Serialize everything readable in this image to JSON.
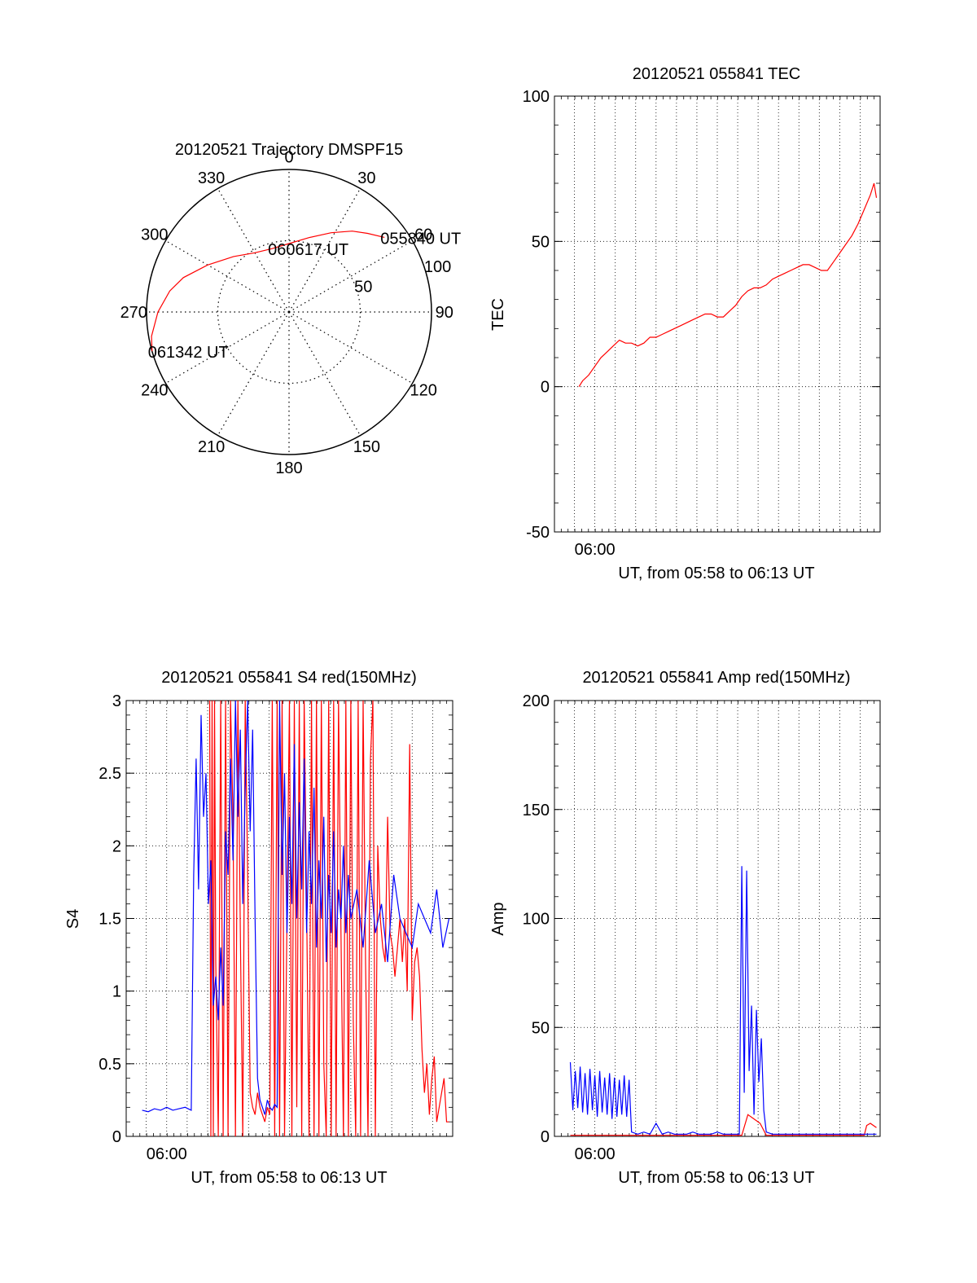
{
  "colors": {
    "red": "#ff0000",
    "blue": "#0000ff",
    "axis": "#000000",
    "grid": "#000000"
  },
  "chart_data": [
    {
      "type": "polar",
      "title": "20120521 Trajectory DMSPF15",
      "angle_labels": [
        "0",
        "30",
        "60",
        "90",
        "120",
        "150",
        "180",
        "210",
        "240",
        "270",
        "300",
        "330"
      ],
      "radial_labels": [
        "50",
        "100"
      ],
      "radial_values": [
        50,
        100
      ],
      "track": {
        "color": "red",
        "points": [
          {
            "az": 52,
            "r": 85
          },
          {
            "az": 45,
            "r": 78
          },
          {
            "az": 38,
            "r": 72
          },
          {
            "az": 28,
            "r": 63
          },
          {
            "az": 15,
            "r": 54
          },
          {
            "az": 0,
            "r": 48
          },
          {
            "az": -15,
            "r": 46
          },
          {
            "az": -30,
            "r": 48
          },
          {
            "az": -45,
            "r": 55
          },
          {
            "az": -60,
            "r": 66
          },
          {
            "az": -72,
            "r": 78
          },
          {
            "az": -80,
            "r": 85
          },
          {
            "az": -90,
            "r": 92
          },
          {
            "az": -100,
            "r": 98
          },
          {
            "az": -106,
            "r": 100
          }
        ]
      },
      "annotations": [
        {
          "text": "055840 UT",
          "az": 52,
          "r": 85
        },
        {
          "text": "060617 UT",
          "az": -15,
          "r": 46
        },
        {
          "text": "061342 UT",
          "az": -106,
          "r": 100
        }
      ]
    },
    {
      "type": "line",
      "title": "20120521 055841 TEC",
      "xlabel": "UT, from 05:58 to 06:13 UT",
      "ylabel": "TEC",
      "xlim": [
        5.967,
        6.233
      ],
      "ylim": [
        -50,
        100
      ],
      "yticks": [
        -50,
        0,
        50,
        100
      ],
      "xtick_label": "06:00",
      "xtick_value": 6.0,
      "grid": true,
      "series": [
        {
          "color": "red",
          "x": [
            5.987,
            5.99,
            5.995,
            6.0,
            6.005,
            6.01,
            6.015,
            6.02,
            6.025,
            6.03,
            6.035,
            6.04,
            6.045,
            6.05,
            6.055,
            6.06,
            6.065,
            6.07,
            6.075,
            6.08,
            6.085,
            6.09,
            6.095,
            6.1,
            6.105,
            6.11,
            6.115,
            6.12,
            6.125,
            6.13,
            6.135,
            6.14,
            6.145,
            6.15,
            6.155,
            6.16,
            6.165,
            6.17,
            6.175,
            6.18,
            6.185,
            6.19,
            6.195,
            6.2,
            6.205,
            6.21,
            6.215,
            6.22,
            6.225,
            6.228,
            6.23
          ],
          "values": [
            0,
            2,
            4,
            7,
            10,
            12,
            14,
            16,
            15,
            15,
            14,
            15,
            17,
            17,
            18,
            19,
            20,
            21,
            22,
            23,
            24,
            25,
            25,
            24,
            24,
            26,
            28,
            31,
            33,
            34,
            34,
            35,
            37,
            38,
            39,
            40,
            41,
            42,
            42,
            41,
            40,
            40,
            43,
            46,
            49,
            52,
            56,
            61,
            66,
            70,
            65
          ]
        }
      ]
    },
    {
      "type": "line",
      "title": "20120521 055841 S4 red(150MHz)",
      "xlabel": "UT, from 05:58 to 06:13 UT",
      "ylabel": "S4",
      "xlim": [
        5.967,
        6.233
      ],
      "ylim": [
        0,
        3
      ],
      "yticks": [
        0,
        0.5,
        1,
        1.5,
        2,
        2.5,
        3
      ],
      "ytick_labels": [
        "0",
        "0.5",
        "1",
        "1.5",
        "2",
        "2.5",
        "3"
      ],
      "xtick_label": "06:00",
      "xtick_value": 6.0,
      "grid": true,
      "series": [
        {
          "color": "red",
          "x": [
            6.035,
            6.036,
            6.037,
            6.038,
            6.039,
            6.04,
            6.042,
            6.044,
            6.046,
            6.048,
            6.05,
            6.052,
            6.054,
            6.056,
            6.058,
            6.06,
            6.062,
            6.064,
            6.066,
            6.068,
            6.07,
            6.072,
            6.074,
            6.076,
            6.078,
            6.08,
            6.082,
            6.084,
            6.086,
            6.088,
            6.09,
            6.092,
            6.094,
            6.096,
            6.098,
            6.1,
            6.102,
            6.104,
            6.106,
            6.108,
            6.11,
            6.112,
            6.114,
            6.116,
            6.118,
            6.12,
            6.122,
            6.124,
            6.126,
            6.128,
            6.13,
            6.132,
            6.134,
            6.136,
            6.138,
            6.14,
            6.142,
            6.144,
            6.146,
            6.148,
            6.15,
            6.152,
            6.154,
            6.156,
            6.158,
            6.16,
            6.162,
            6.164,
            6.166,
            6.168,
            6.17,
            6.172,
            6.174,
            6.176,
            6.178,
            6.18,
            6.182,
            6.184,
            6.186,
            6.188,
            6.19,
            6.192,
            6.194,
            6.196,
            6.198,
            6.2,
            6.202,
            6.204,
            6.206,
            6.208,
            6.21,
            6.212,
            6.214,
            6.216,
            6.218,
            6.22,
            6.222,
            6.224,
            6.226,
            6.228,
            6.23
          ],
          "values": [
            3,
            0,
            3,
            0,
            3,
            1.2,
            0,
            3,
            0,
            3,
            0,
            3,
            2.2,
            0,
            3,
            1.4,
            0,
            3,
            1.8,
            0.3,
            0.2,
            0.15,
            0.3,
            0.2,
            0.15,
            0.1,
            0.2,
            0.15,
            3,
            0,
            3,
            0,
            3,
            0,
            1.5,
            3,
            0,
            3,
            0.2,
            3,
            0,
            3,
            1.6,
            0,
            3,
            0,
            3,
            0,
            3,
            0.5,
            0,
            3,
            0,
            3,
            0,
            3,
            1.4,
            0,
            3,
            0,
            3,
            0.8,
            0,
            3,
            0,
            3,
            1.2,
            0,
            2.6,
            3,
            0,
            2.0,
            1.5,
            1.3,
            1.2,
            2.2,
            1.4,
            1.3,
            1.1,
            1.3,
            1.5,
            1.2,
            1.5,
            1.0,
            2.7,
            0.8,
            1.2,
            1.3,
            1.1,
            0.6,
            0.3,
            0.5,
            0.15,
            0.4,
            0.55,
            0.1,
            0.2,
            0.3,
            0.4,
            0.1,
            0.1
          ]
        },
        {
          "color": "blue",
          "x": [
            5.98,
            5.985,
            5.99,
            5.995,
            6.0,
            6.005,
            6.01,
            6.015,
            6.02,
            6.022,
            6.024,
            6.026,
            6.028,
            6.03,
            6.032,
            6.034,
            6.036,
            6.038,
            6.04,
            6.042,
            6.044,
            6.046,
            6.048,
            6.05,
            6.052,
            6.054,
            6.056,
            6.058,
            6.06,
            6.062,
            6.064,
            6.066,
            6.068,
            6.07,
            6.072,
            6.074,
            6.076,
            6.078,
            6.08,
            6.082,
            6.084,
            6.086,
            6.088,
            6.09,
            6.092,
            6.094,
            6.096,
            6.098,
            6.1,
            6.102,
            6.104,
            6.106,
            6.108,
            6.11,
            6.112,
            6.114,
            6.116,
            6.118,
            6.12,
            6.122,
            6.124,
            6.126,
            6.128,
            6.13,
            6.132,
            6.134,
            6.136,
            6.138,
            6.14,
            6.142,
            6.144,
            6.146,
            6.148,
            6.15,
            6.155,
            6.16,
            6.165,
            6.17,
            6.175,
            6.18,
            6.185,
            6.19,
            6.195,
            6.2,
            6.205,
            6.21,
            6.215,
            6.22,
            6.225,
            6.23
          ],
          "values": [
            0.18,
            0.17,
            0.19,
            0.18,
            0.2,
            0.18,
            0.19,
            0.2,
            0.18,
            1.8,
            2.6,
            1.7,
            2.9,
            2.2,
            2.5,
            1.6,
            1.9,
            0.9,
            1.1,
            0.8,
            1.3,
            0.9,
            2.1,
            1.8,
            2.6,
            1.9,
            3,
            2.2,
            2.8,
            1.6,
            2.4,
            3,
            2.1,
            2.8,
            1.5,
            0.4,
            0.25,
            0.2,
            0.15,
            0.25,
            0.2,
            0.18,
            0.22,
            0.2,
            3,
            1.8,
            2.5,
            1.4,
            2.2,
            1.6,
            2.7,
            1.5,
            2.3,
            1.7,
            2.6,
            1.4,
            2.1,
            1.6,
            2.4,
            1.3,
            1.9,
            1.5,
            2.2,
            1.2,
            1.8,
            1.4,
            2.1,
            1.3,
            1.7,
            1.5,
            2.0,
            1.4,
            1.8,
            1.5,
            1.7,
            1.3,
            1.9,
            1.4,
            1.6,
            1.2,
            1.8,
            1.5,
            1.4,
            1.3,
            1.6,
            1.5,
            1.4,
            1.7,
            1.3,
            1.5
          ]
        }
      ]
    },
    {
      "type": "line",
      "title": "20120521 055841 Amp red(150MHz)",
      "xlabel": "UT, from 05:58 to 06:13 UT",
      "ylabel": "Amp",
      "xlim": [
        5.967,
        6.233
      ],
      "ylim": [
        0,
        200
      ],
      "yticks": [
        0,
        50,
        100,
        150,
        200
      ],
      "xtick_label": "06:00",
      "xtick_value": 6.0,
      "grid": true,
      "series": [
        {
          "color": "red",
          "x": [
            5.98,
            6.0,
            6.02,
            6.04,
            6.08,
            6.1,
            6.12,
            6.125,
            6.13,
            6.135,
            6.14,
            6.15,
            6.2,
            6.22,
            6.222,
            6.225,
            6.23
          ],
          "values": [
            0.5,
            0.5,
            0.5,
            0.5,
            0.5,
            0.5,
            0.5,
            10,
            8,
            6,
            0.5,
            0.5,
            0.5,
            0.5,
            5,
            6,
            4
          ]
        },
        {
          "color": "blue",
          "x": [
            5.98,
            5.982,
            5.984,
            5.986,
            5.988,
            5.99,
            5.992,
            5.994,
            5.996,
            5.998,
            6.0,
            6.002,
            6.004,
            6.006,
            6.008,
            6.01,
            6.012,
            6.014,
            6.016,
            6.018,
            6.02,
            6.022,
            6.024,
            6.026,
            6.028,
            6.03,
            6.035,
            6.04,
            6.045,
            6.05,
            6.055,
            6.06,
            6.065,
            6.07,
            6.075,
            6.08,
            6.085,
            6.09,
            6.095,
            6.1,
            6.105,
            6.11,
            6.115,
            6.118,
            6.12,
            6.122,
            6.124,
            6.126,
            6.128,
            6.13,
            6.132,
            6.134,
            6.136,
            6.138,
            6.14,
            6.145,
            6.15,
            6.16,
            6.17,
            6.18,
            6.19,
            6.2,
            6.21,
            6.22,
            6.23
          ],
          "values": [
            34,
            12,
            30,
            13,
            32,
            11,
            29,
            10,
            31,
            12,
            28,
            9,
            30,
            11,
            27,
            10,
            29,
            8,
            27,
            9,
            26,
            10,
            28,
            9,
            26,
            2,
            1,
            2,
            1,
            6,
            1,
            2,
            1,
            1,
            1,
            2,
            1,
            1,
            1,
            2,
            1,
            1,
            1,
            1,
            124,
            20,
            122,
            30,
            60,
            10,
            58,
            25,
            45,
            12,
            2,
            1,
            1,
            1,
            1,
            1,
            1,
            1,
            1,
            1,
            1
          ]
        }
      ]
    }
  ]
}
